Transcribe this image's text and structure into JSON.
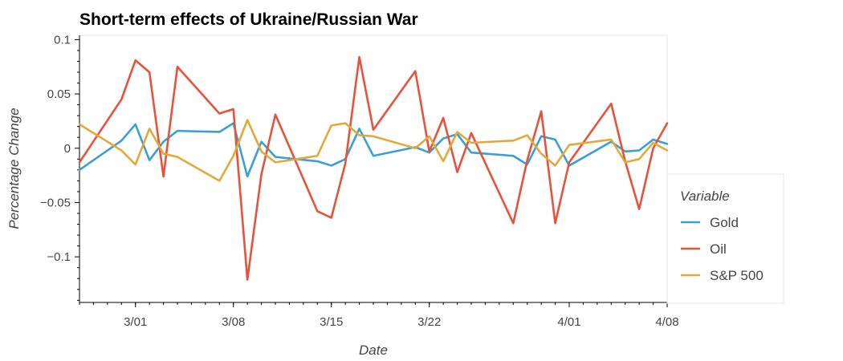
{
  "chart_data": {
    "type": "line",
    "title": "Short-term effects of Ukraine/Russian War",
    "xlabel": "Date",
    "ylabel": "Percentage Change",
    "x_ticks": [
      "3/01",
      "3/08",
      "3/15",
      "3/22",
      "4/01",
      "4/08"
    ],
    "y_ticks": [
      "0.1",
      "0.05",
      "0",
      "−0.05",
      "−0.1"
    ],
    "ylim": [
      -0.142,
      0.104
    ],
    "grid": false,
    "legend": {
      "title": "Variable",
      "position": "right"
    },
    "series": [
      {
        "name": "Gold",
        "color": "#3a9fd4",
        "points": [
          [
            "2022-02-25",
            -0.02
          ],
          [
            "2022-02-28",
            0.007
          ],
          [
            "2022-03-01",
            0.022
          ],
          [
            "2022-03-02",
            -0.011
          ],
          [
            "2022-03-03",
            0.006
          ],
          [
            "2022-03-04",
            0.016
          ],
          [
            "2022-03-07",
            0.015
          ],
          [
            "2022-03-08",
            0.023
          ],
          [
            "2022-03-09",
            -0.026
          ],
          [
            "2022-03-10",
            0.006
          ],
          [
            "2022-03-11",
            -0.008
          ],
          [
            "2022-03-14",
            -0.012
          ],
          [
            "2022-03-15",
            -0.016
          ],
          [
            "2022-03-16",
            -0.01
          ],
          [
            "2022-03-17",
            0.018
          ],
          [
            "2022-03-18",
            -0.007
          ],
          [
            "2022-03-21",
            0.001
          ],
          [
            "2022-03-22",
            -0.004
          ],
          [
            "2022-03-23",
            0.009
          ],
          [
            "2022-03-24",
            0.013
          ],
          [
            "2022-03-25",
            -0.004
          ],
          [
            "2022-03-28",
            -0.007
          ],
          [
            "2022-03-29",
            -0.015
          ],
          [
            "2022-03-30",
            0.011
          ],
          [
            "2022-03-31",
            0.008
          ],
          [
            "2022-04-01",
            -0.016
          ],
          [
            "2022-04-04",
            0.006
          ],
          [
            "2022-04-05",
            -0.003
          ],
          [
            "2022-04-06",
            -0.002
          ],
          [
            "2022-04-07",
            0.008
          ],
          [
            "2022-04-08",
            0.004
          ]
        ]
      },
      {
        "name": "Oil",
        "color": "#e8513a",
        "points": [
          [
            "2022-02-25",
            -0.013
          ],
          [
            "2022-02-28",
            0.045
          ],
          [
            "2022-03-01",
            0.081
          ],
          [
            "2022-03-02",
            0.07
          ],
          [
            "2022-03-03",
            -0.026
          ],
          [
            "2022-03-04",
            0.075
          ],
          [
            "2022-03-07",
            0.032
          ],
          [
            "2022-03-08",
            0.036
          ],
          [
            "2022-03-09",
            -0.121
          ],
          [
            "2022-03-10",
            -0.024
          ],
          [
            "2022-03-11",
            0.031
          ],
          [
            "2022-03-14",
            -0.058
          ],
          [
            "2022-03-15",
            -0.064
          ],
          [
            "2022-03-16",
            -0.014
          ],
          [
            "2022-03-17",
            0.084
          ],
          [
            "2022-03-18",
            0.017
          ],
          [
            "2022-03-21",
            0.071
          ],
          [
            "2022-03-22",
            -0.003
          ],
          [
            "2022-03-23",
            0.028
          ],
          [
            "2022-03-24",
            -0.022
          ],
          [
            "2022-03-25",
            0.014
          ],
          [
            "2022-03-28",
            -0.069
          ],
          [
            "2022-03-29",
            -0.011
          ],
          [
            "2022-03-30",
            0.034
          ],
          [
            "2022-03-31",
            -0.069
          ],
          [
            "2022-04-01",
            -0.013
          ],
          [
            "2022-04-04",
            0.041
          ],
          [
            "2022-04-05",
            -0.012
          ],
          [
            "2022-04-06",
            -0.056
          ],
          [
            "2022-04-07",
            0.0
          ],
          [
            "2022-04-08",
            0.023
          ]
        ]
      },
      {
        "name": "S&P 500",
        "color": "#e2a93a",
        "points": [
          [
            "2022-02-25",
            0.022
          ],
          [
            "2022-02-28",
            -0.002
          ],
          [
            "2022-03-01",
            -0.015
          ],
          [
            "2022-03-02",
            0.018
          ],
          [
            "2022-03-03",
            -0.005
          ],
          [
            "2022-03-04",
            -0.008
          ],
          [
            "2022-03-07",
            -0.03
          ],
          [
            "2022-03-08",
            -0.007
          ],
          [
            "2022-03-09",
            0.026
          ],
          [
            "2022-03-10",
            -0.003
          ],
          [
            "2022-03-11",
            -0.013
          ],
          [
            "2022-03-14",
            -0.007
          ],
          [
            "2022-03-15",
            0.021
          ],
          [
            "2022-03-16",
            0.023
          ],
          [
            "2022-03-17",
            0.012
          ],
          [
            "2022-03-18",
            0.011
          ],
          [
            "2022-03-21",
            0.0
          ],
          [
            "2022-03-22",
            0.011
          ],
          [
            "2022-03-23",
            -0.012
          ],
          [
            "2022-03-24",
            0.015
          ],
          [
            "2022-03-25",
            0.005
          ],
          [
            "2022-03-28",
            0.007
          ],
          [
            "2022-03-29",
            0.012
          ],
          [
            "2022-03-30",
            -0.005
          ],
          [
            "2022-03-31",
            -0.016
          ],
          [
            "2022-04-01",
            0.003
          ],
          [
            "2022-04-04",
            0.008
          ],
          [
            "2022-04-05",
            -0.013
          ],
          [
            "2022-04-06",
            -0.01
          ],
          [
            "2022-04-07",
            0.005
          ],
          [
            "2022-04-08",
            -0.002
          ]
        ]
      }
    ]
  }
}
